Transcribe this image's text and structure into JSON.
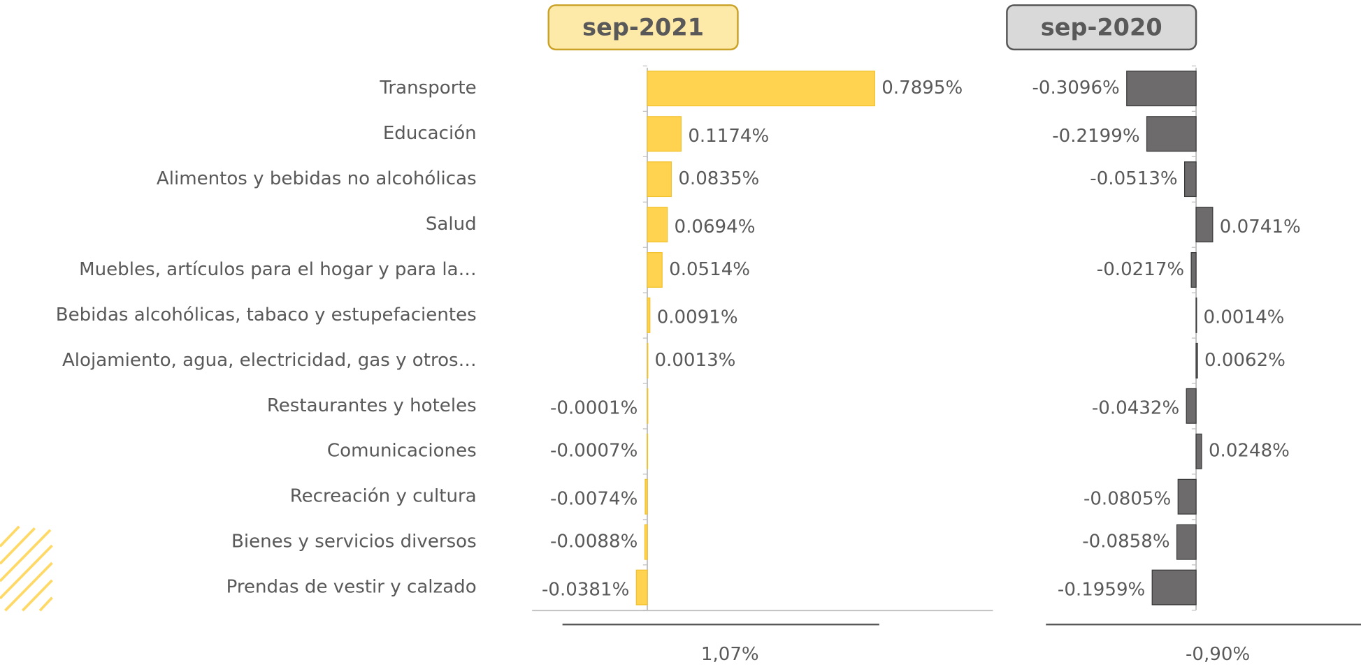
{
  "chart_data": [
    {
      "type": "bar",
      "title": "sep-2021",
      "color": "#ffd34f",
      "xlim": [
        -0.4,
        1.2
      ],
      "categories": [
        "Transporte",
        "Educación",
        "Alimentos y bebidas no alcohólicas",
        "Salud",
        "Muebles, artículos para el hogar y para la…",
        "Bebidas alcohólicas, tabaco y estupefacientes",
        "Alojamiento, agua, electricidad, gas y otros…",
        "Restaurantes y hoteles",
        "Comunicaciones",
        "Recreación y cultura",
        "Bienes y servicios diversos",
        "Prendas de vestir y calzado"
      ],
      "values": [
        0.7895,
        0.1174,
        0.0835,
        0.0694,
        0.0514,
        0.0091,
        0.0013,
        -0.0001,
        -0.0007,
        -0.0074,
        -0.0088,
        -0.0381
      ],
      "value_labels": [
        "0.7895%",
        "0.1174%",
        "0.0835%",
        "0.0694%",
        "0.0514%",
        "0.0091%",
        "0.0013%",
        "-0.0001%",
        "-0.0007%",
        "-0.0074%",
        "-0.0088%",
        "-0.0381%"
      ],
      "total_label": "1,07%"
    },
    {
      "type": "bar",
      "title": "sep-2020",
      "color": "#6d6b6b",
      "xlim": [
        -0.6,
        0.6
      ],
      "values": [
        -0.3096,
        -0.2199,
        -0.0513,
        0.0741,
        -0.0217,
        0.0014,
        0.0062,
        -0.0432,
        0.0248,
        -0.0805,
        -0.0858,
        -0.1959
      ],
      "value_labels": [
        "-0.3096%",
        "-0.2199%",
        "-0.0513%",
        "0.0741%",
        "-0.0217%",
        "0.0014%",
        "0.0062%",
        "-0.0432%",
        "0.0248%",
        "-0.0805%",
        "-0.0858%",
        "-0.1959%"
      ],
      "total_label": "-0,90%"
    }
  ]
}
